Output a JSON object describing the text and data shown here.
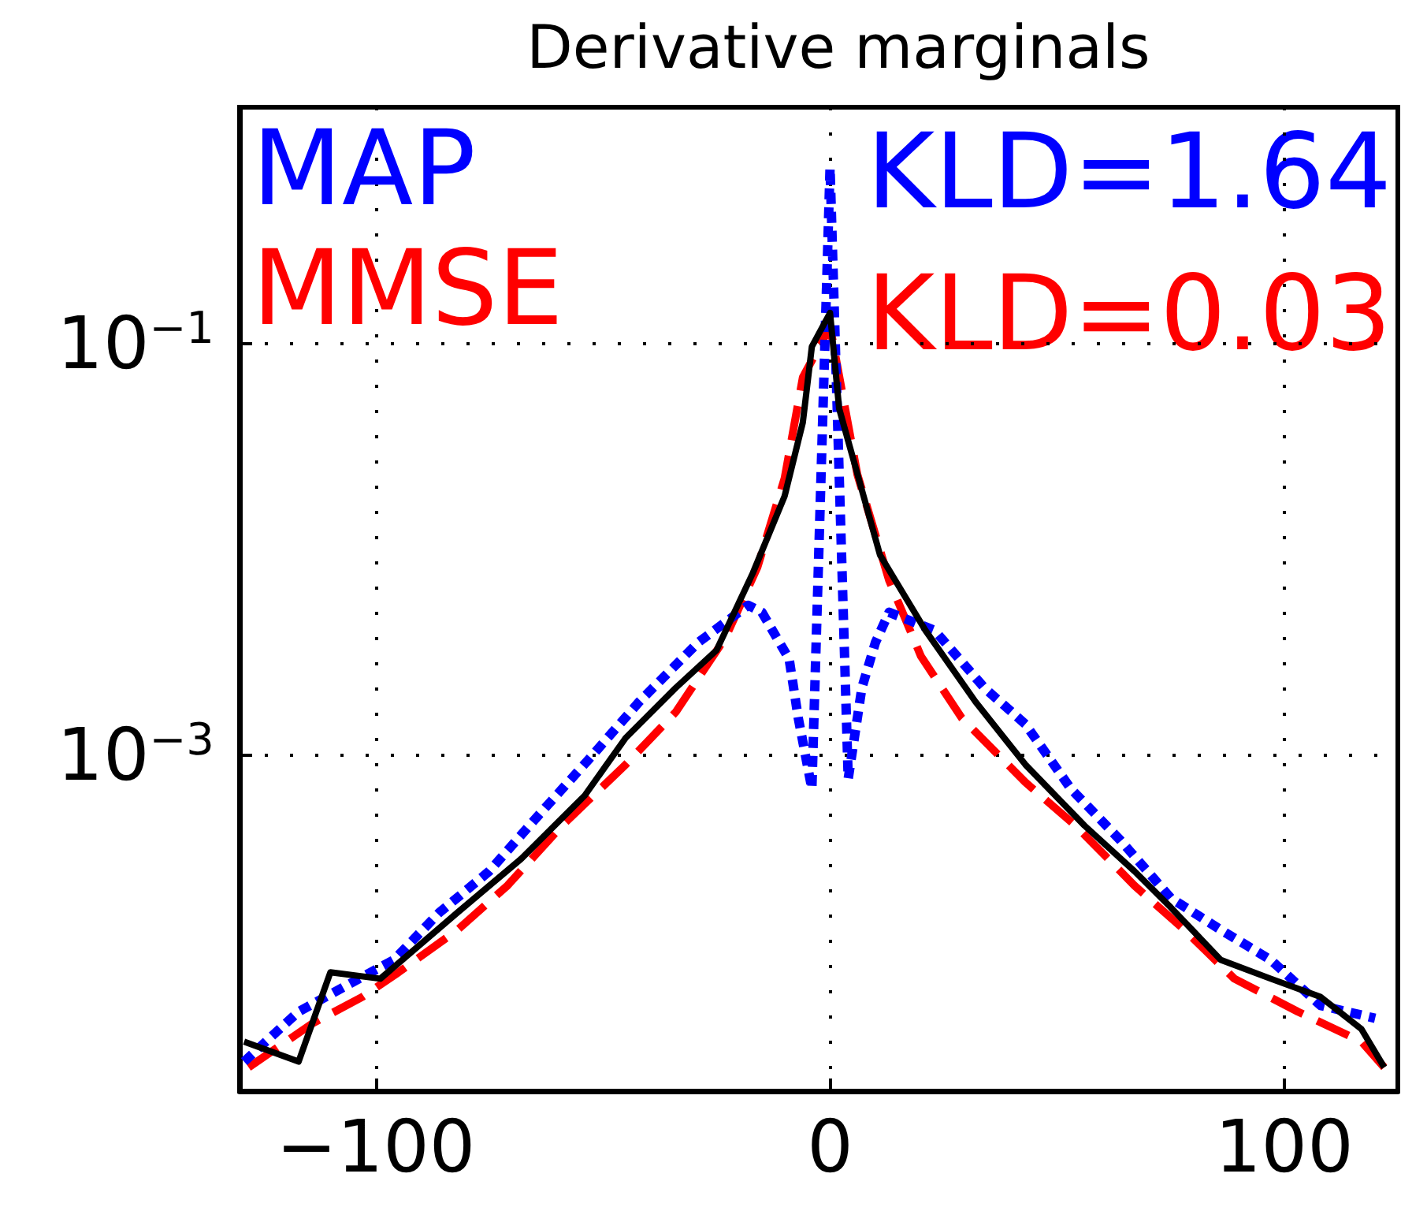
{
  "chart_data": {
    "type": "line",
    "title": "Derivative marginals",
    "xlim": [
      -130,
      125
    ],
    "xticks": [
      {
        "value": -100,
        "label": "−100"
      },
      0,
      100
    ],
    "ylim": [
      2.3e-05,
      1.4
    ],
    "yticks": [
      {
        "value": 0.1,
        "label": "10$^{−1}$"
      },
      {
        "value": 0.001,
        "label": "10$^{−3}$"
      }
    ],
    "log": "y",
    "grid": true,
    "legend": "top left",
    "annotations": [
      "KLD=1.64",
      "KLD=0.03"
    ],
    "series": [
      {
        "color": "#000000",
        "line_style": "solid",
        "x": [
          -129,
          -117,
          -110,
          -99,
          -82,
          -68,
          -54,
          -45,
          -34,
          -25,
          -17,
          -10,
          -6,
          -4,
          0,
          2,
          11,
          21,
          32,
          43,
          56,
          67,
          75,
          86,
          97,
          108,
          117,
          122
        ],
        "values": [
          4e-05,
          3.2e-05,
          8.7e-05,
          8.1e-05,
          0.00017,
          0.00031,
          0.00063,
          0.0012,
          0.0021,
          0.0032,
          0.0076,
          0.018,
          0.041,
          0.096,
          0.14,
          0.048,
          0.0093,
          0.004,
          0.0018,
          0.00089,
          0.00045,
          0.00027,
          0.00018,
          0.0001,
          8.1e-05,
          6.6e-05,
          4.6e-05,
          3e-05
        ]
      },
      {
        "name": "MAP",
        "color": "#0000ff",
        "line_style": "dotted",
        "x": [
          -129,
          -117,
          -106,
          -96,
          -86,
          -75,
          -64,
          -53,
          -42,
          -29,
          -18,
          -15,
          -9,
          -7,
          -4,
          0,
          4,
          7,
          10,
          13,
          23,
          34,
          43,
          53,
          64,
          75,
          86,
          97,
          108,
          120
        ],
        "values": [
          3.2e-05,
          5.6e-05,
          7.6e-05,
          0.0001,
          0.00017,
          0.00027,
          0.00051,
          0.00095,
          0.0018,
          0.0035,
          0.0053,
          0.0049,
          0.0029,
          0.0015,
          0.00068,
          0.71,
          0.00076,
          0.0021,
          0.0035,
          0.0049,
          0.004,
          0.0021,
          0.0014,
          0.00068,
          0.00038,
          0.0002,
          0.00014,
          0.0001,
          6e-05,
          5.2e-05
        ]
      },
      {
        "name": "MMSE",
        "color": "#ff0000",
        "line_style": "dashed",
        "x": [
          -128,
          -114,
          -103,
          -95,
          -82,
          -71,
          -59,
          -45,
          -34,
          -23,
          -16,
          -10,
          -6,
          0,
          6,
          13,
          20,
          29,
          43,
          54,
          67,
          78,
          89,
          103,
          117,
          122
        ],
        "values": [
          3e-05,
          4.9e-05,
          6.6e-05,
          8.7e-05,
          0.00014,
          0.00023,
          0.00045,
          0.00089,
          0.0016,
          0.0037,
          0.0081,
          0.022,
          0.068,
          0.12,
          0.023,
          0.007,
          0.003,
          0.0015,
          0.00073,
          0.00045,
          0.00023,
          0.00014,
          8.1e-05,
          5.6e-05,
          4e-05,
          3e-05
        ]
      }
    ]
  }
}
